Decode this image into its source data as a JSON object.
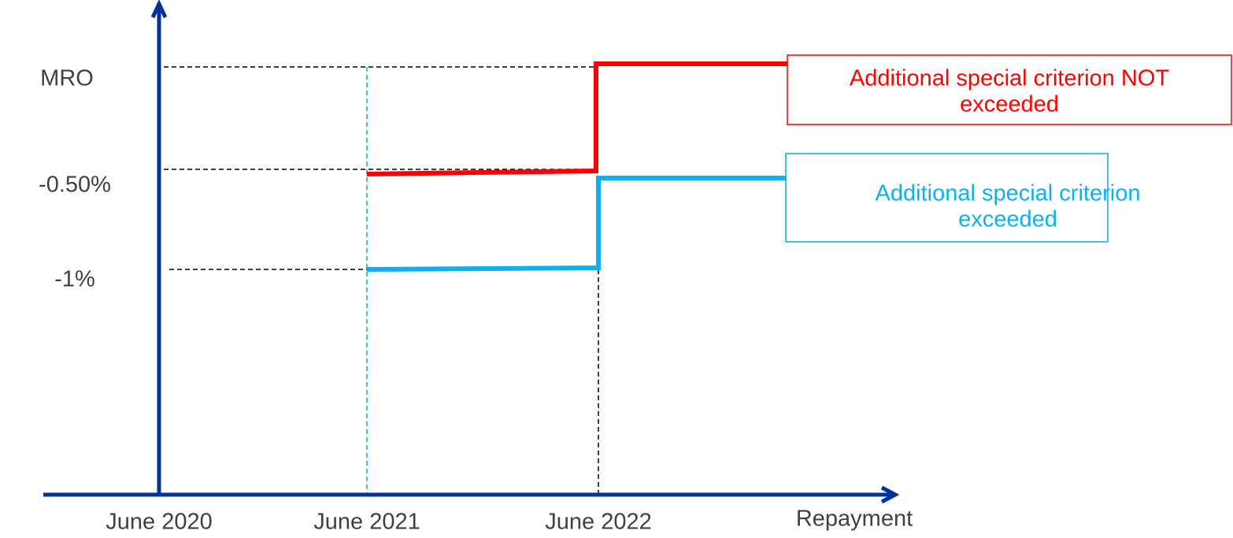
{
  "y_labels": [
    "MRO",
    "-0.50%",
    "-1%"
  ],
  "x_labels": [
    "June 2020",
    "June 2021",
    "June 2022",
    "Repayment"
  ],
  "callouts": [
    {
      "lines": [
        "Additional special criterion NOT",
        "exceeded"
      ]
    },
    {
      "lines": [
        "Additional special criterion",
        "exceeded"
      ]
    }
  ]
}
